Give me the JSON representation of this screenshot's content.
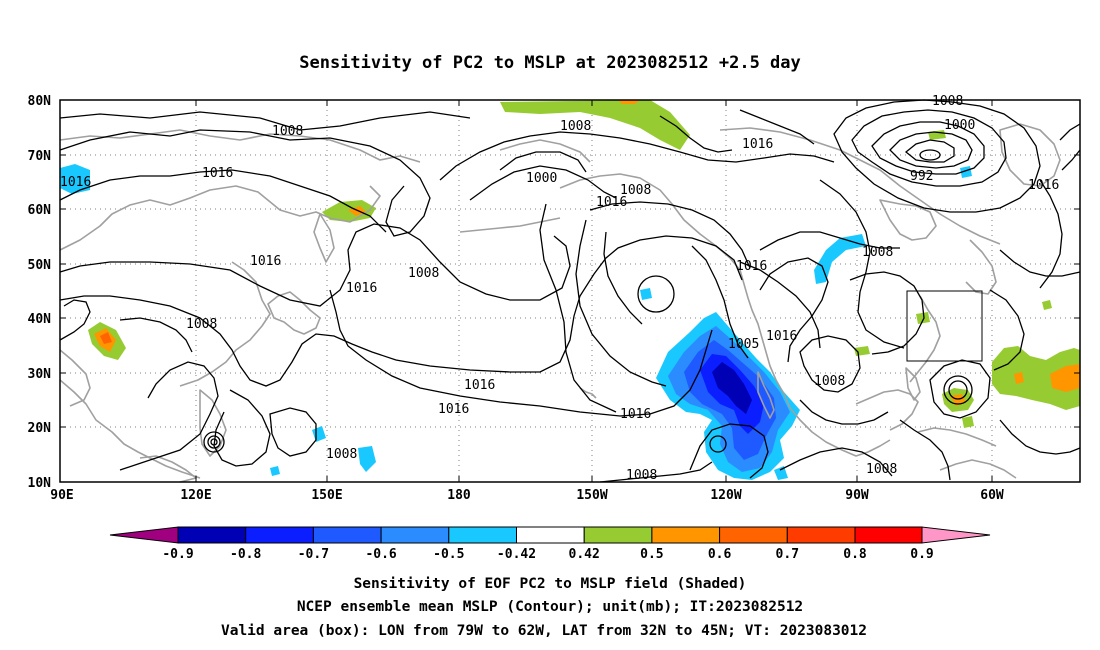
{
  "title": "Sensitivity of PC2 to MSLP at 2023082512 +2.5 day",
  "colors": {
    "neg_0_9": "#a00080",
    "neg_0_8": "#0000b4",
    "neg_0_7": "#0a1eff",
    "neg_0_6": "#1e5aff",
    "neg_0_5": "#2a8cff",
    "neg_0_42": "#19c8ff",
    "neutral": "#ffffff",
    "pos_0_42": "#96cc32",
    "pos_0_5": "#ff9600",
    "pos_0_6": "#ff6400",
    "pos_0_7": "#ff3c00",
    "pos_0_8": "#ff0000",
    "pos_0_9": "#ff96c8",
    "contour": "#000000",
    "coast": "#a0a0a0",
    "grid": "#808080"
  },
  "map": {
    "lon_range": [
      "90E",
      "50W"
    ],
    "lat_range": [
      "10N",
      "80N"
    ],
    "x_ticks": [
      "90E",
      "120E",
      "150E",
      "180",
      "150W",
      "120W",
      "90W",
      "60W"
    ],
    "y_ticks": [
      "80N",
      "70N",
      "60N",
      "50N",
      "40N",
      "30N",
      "20N",
      "10N"
    ],
    "contour_labels": [
      "1008",
      "1016",
      "1000",
      "992",
      "1005"
    ],
    "valid_box": {
      "lon": [
        "79W",
        "62W"
      ],
      "lat": [
        "32N",
        "45N"
      ]
    }
  },
  "colorbar": {
    "labels": [
      "-0.9",
      "-0.8",
      "-0.7",
      "-0.6",
      "-0.5",
      "-0.42",
      "0.42",
      "0.5",
      "0.6",
      "0.7",
      "0.8",
      "0.9"
    ]
  },
  "captions": [
    "Sensitivity of EOF PC2 to MSLP field (Shaded)",
    "NCEP ensemble mean MSLP (Contour); unit(mb); IT:2023082512",
    "Valid area (box): LON from 79W to 62W, LAT from 32N to 45N; VT: 2023083012"
  ]
}
